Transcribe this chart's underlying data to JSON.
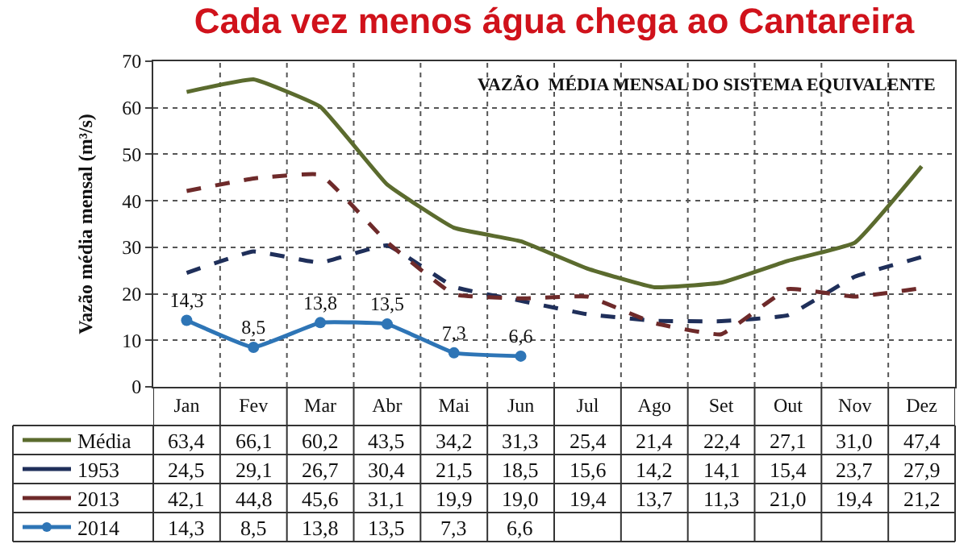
{
  "chart_data": {
    "type": "line",
    "title": "Cada vez menos água chega ao Cantareira",
    "subtitle": "VAZÃO  MÉDIA MENSAL DO SISTEMA EQUIVALENTE",
    "ylabel": "Vazão média mensal (m³/s)",
    "categories": [
      "Jan",
      "Fev",
      "Mar",
      "Abr",
      "Mai",
      "Jun",
      "Jul",
      "Ago",
      "Set",
      "Out",
      "Nov",
      "Dez"
    ],
    "legend": "bottom",
    "ylim": [
      0,
      70
    ],
    "yticks": [
      0,
      10,
      20,
      30,
      40,
      50,
      60,
      70
    ],
    "grid": true,
    "series": [
      {
        "name": "Média",
        "color": "#5b6b2e",
        "line_style": "solid",
        "marker": "none",
        "values": [
          63.4,
          66.1,
          60.2,
          43.5,
          34.2,
          31.3,
          25.4,
          21.4,
          22.4,
          27.1,
          31.0,
          47.4
        ],
        "value_labels": [
          "63,4",
          "66,1",
          "60,2",
          "43,5",
          "34,2",
          "31,3",
          "25,4",
          "21,4",
          "22,4",
          "27,1",
          "31,0",
          "47,4"
        ]
      },
      {
        "name": "1953",
        "color": "#1f2f5a",
        "line_style": "dashed",
        "marker": "none",
        "values": [
          24.5,
          29.1,
          26.7,
          30.4,
          21.5,
          18.5,
          15.6,
          14.2,
          14.1,
          15.4,
          23.7,
          27.9
        ],
        "value_labels": [
          "24,5",
          "29,1",
          "26,7",
          "30,4",
          "21,5",
          "18,5",
          "15,6",
          "14,2",
          "14,1",
          "15,4",
          "23,7",
          "27,9"
        ]
      },
      {
        "name": "2013",
        "color": "#6e2a2a",
        "line_style": "dashed",
        "marker": "none",
        "values": [
          42.1,
          44.8,
          45.6,
          31.1,
          19.9,
          19.0,
          19.4,
          13.7,
          11.3,
          21.0,
          19.4,
          21.2
        ],
        "value_labels": [
          "42,1",
          "44,8",
          "45,6",
          "31,1",
          "19,9",
          "19,0",
          "19,4",
          "13,7",
          "11,3",
          "21,0",
          "19,4",
          "21,2"
        ]
      },
      {
        "name": "2014",
        "color": "#2e75b6",
        "line_style": "solid",
        "marker": "circle",
        "data_labels": true,
        "values": [
          14.3,
          8.5,
          13.8,
          13.5,
          7.3,
          6.6,
          null,
          null,
          null,
          null,
          null,
          null
        ],
        "value_labels": [
          "14,3",
          "8,5",
          "13,8",
          "13,5",
          "7,3",
          "6,6",
          null,
          null,
          null,
          null,
          null,
          null
        ]
      }
    ]
  }
}
